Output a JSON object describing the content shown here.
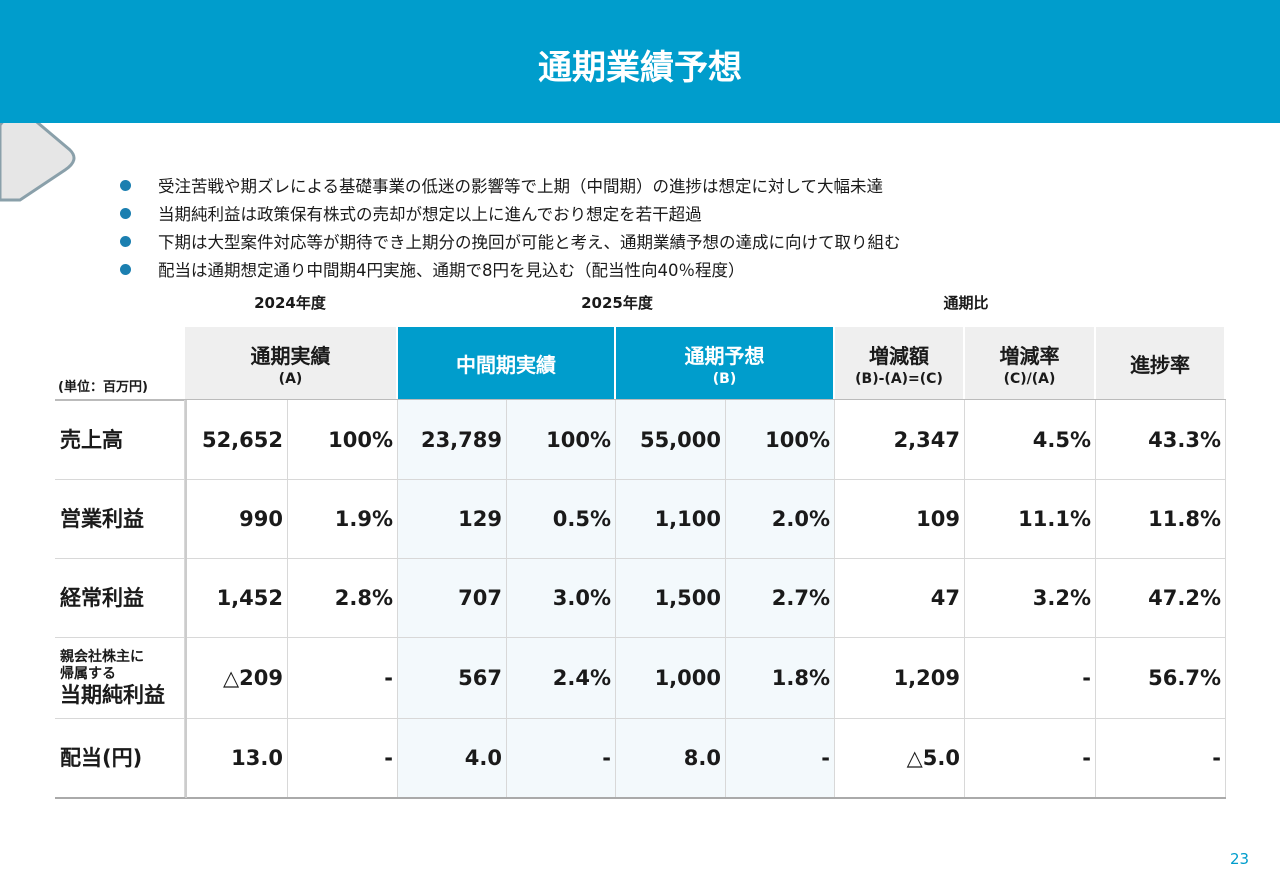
{
  "header": {
    "title": "通期業績予想"
  },
  "bullets": [
    "受注苦戦や期ズレによる基礎事業の低迷の影響等で上期（中間期）の進捗は想定に対して大幅未達",
    "当期純利益は政策保有株式の売却が想定以上に進んでおり想定を若干超過",
    "下期は大型案件対応等が期待でき上期分の挽回が可能と考え、通期業績予想の達成に向けて取り組む",
    "配当は通期想定通り中間期4円実施、通期で8円を見込む（配当性向40％程度）"
  ],
  "table": {
    "group_labels": [
      "2024年度",
      "2025年度",
      "通期比"
    ],
    "unit": "(単位：百万円)",
    "columns": [
      {
        "label": "通期実績",
        "sub": "(A)"
      },
      {
        "label": "中間期実績"
      },
      {
        "label": "通期予想",
        "sub": "(B)"
      },
      {
        "label": "増減額",
        "sub": "(B)-(A)=(C)"
      },
      {
        "label": "増減率",
        "sub": "(C)/(A)"
      },
      {
        "label": "進捗率"
      }
    ],
    "rows": [
      {
        "label": [
          "売上高"
        ],
        "cells": [
          "52,652",
          "100%",
          "23,789",
          "100%",
          "55,000",
          "100%",
          "2,347",
          "4.5%",
          "43.3%"
        ]
      },
      {
        "label": [
          "営業利益"
        ],
        "cells": [
          "990",
          "1.9%",
          "129",
          "0.5%",
          "1,100",
          "2.0%",
          "109",
          "11.1%",
          "11.8%"
        ]
      },
      {
        "label": [
          "経常利益"
        ],
        "cells": [
          "1,452",
          "2.8%",
          "707",
          "3.0%",
          "1,500",
          "2.7%",
          "47",
          "3.2%",
          "47.2%"
        ]
      },
      {
        "label": [
          "親会社株主に",
          "帰属する",
          "当期純利益"
        ],
        "cells": [
          "△209",
          "-",
          "567",
          "2.4%",
          "1,000",
          "1.8%",
          "1,209",
          "-",
          "56.7%"
        ]
      },
      {
        "label": [
          "配当(円)"
        ],
        "cells": [
          "13.0",
          "-",
          "4.0",
          "-",
          "8.0",
          "-",
          "△5.0",
          "-",
          "-"
        ]
      }
    ]
  },
  "page_number": "23"
}
